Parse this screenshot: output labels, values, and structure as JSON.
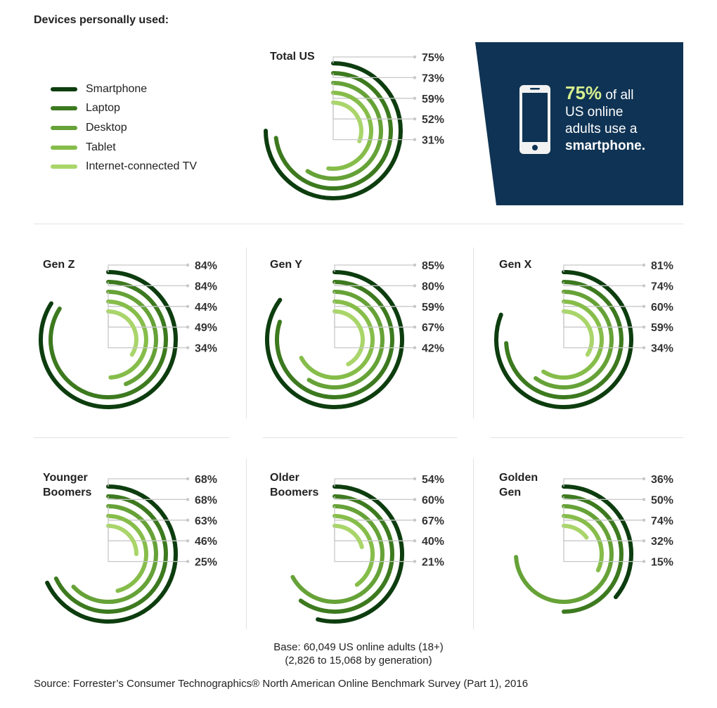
{
  "title": "Devices personally used:",
  "legend": [
    {
      "label": "Smartphone",
      "color": "#0d3d0f"
    },
    {
      "label": "Laptop",
      "color": "#3d7a1f"
    },
    {
      "label": "Desktop",
      "color": "#66a237"
    },
    {
      "label": "Tablet",
      "color": "#86bd4a"
    },
    {
      "label": "Internet-connected TV",
      "color": "#a9d56a"
    }
  ],
  "callout": {
    "percent": "75%",
    "line1": "of all",
    "line2": "US online",
    "line3": "adults use a",
    "bold": "smartphone."
  },
  "chart_data": {
    "type": "radial-bar",
    "series": [
      "Smartphone",
      "Laptop",
      "Desktop",
      "Tablet",
      "Internet-connected TV"
    ],
    "panels": [
      {
        "name": "Total US",
        "name_lines": [
          "Total US"
        ],
        "values": [
          75,
          73,
          59,
          52,
          31
        ]
      },
      {
        "name": "Gen Z",
        "name_lines": [
          "Gen Z"
        ],
        "values": [
          84,
          84,
          44,
          49,
          34
        ]
      },
      {
        "name": "Gen Y",
        "name_lines": [
          "Gen Y"
        ],
        "values": [
          85,
          80,
          59,
          67,
          42
        ]
      },
      {
        "name": "Gen X",
        "name_lines": [
          "Gen X"
        ],
        "values": [
          81,
          74,
          60,
          59,
          34
        ]
      },
      {
        "name": "Younger Boomers",
        "name_lines": [
          "Younger",
          "Boomers"
        ],
        "values": [
          68,
          68,
          63,
          46,
          25
        ]
      },
      {
        "name": "Older Boomers",
        "name_lines": [
          "Older",
          "Boomers"
        ],
        "values": [
          54,
          60,
          67,
          40,
          21
        ]
      },
      {
        "name": "Golden Gen",
        "name_lines": [
          "Golden",
          "Gen"
        ],
        "values": [
          36,
          50,
          74,
          32,
          15
        ]
      }
    ],
    "unit": "%",
    "max": 100
  },
  "base_note": {
    "line1": "Base: 60,049 US online adults (18+)",
    "line2": "(2,826 to 15,068 by generation)"
  },
  "source": "Source: Forrester’s Consumer Technographics® North American Online Benchmark Survey (Part 1), 2016"
}
